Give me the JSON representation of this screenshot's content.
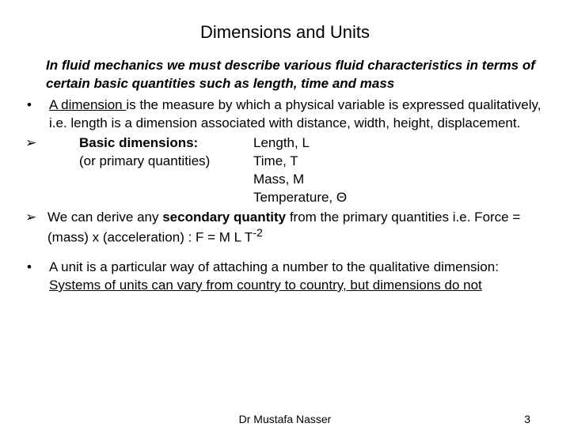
{
  "title": "Dimensions and Units",
  "intro": "In fluid mechanics we must describe various fluid characteristics in terms of certain basic quantities such as length, time and mass",
  "b1_a": "A dimension ",
  "b1_b": "is the measure by which a physical variable is expressed qualitatively, i.e. length is a dimension associated with distance, width, height, displacement.",
  "dim_label": "Basic dimensions:",
  "dim_sub": "(or primary quantities)",
  "dim_L": "Length, L",
  "dim_T": "Time, T",
  "dim_M": "Mass, M",
  "dim_Th": "Temperature, Θ",
  "sec_a": "We can derive any ",
  "sec_b": "secondary quantity",
  "sec_c": " from the primary quantities      i.e. Force = (mass) x (acceleration) : F = M L T",
  "sec_exp": "-2",
  "unit_a": "A unit is a particular way of attaching a number to the qualitative dimension: ",
  "unit_b": "Systems of units can vary from country to country, but dimensions do not",
  "footer_author": "Dr Mustafa Nasser",
  "footer_page": "3",
  "bullet_marker": "•",
  "arrow_marker": "➢"
}
